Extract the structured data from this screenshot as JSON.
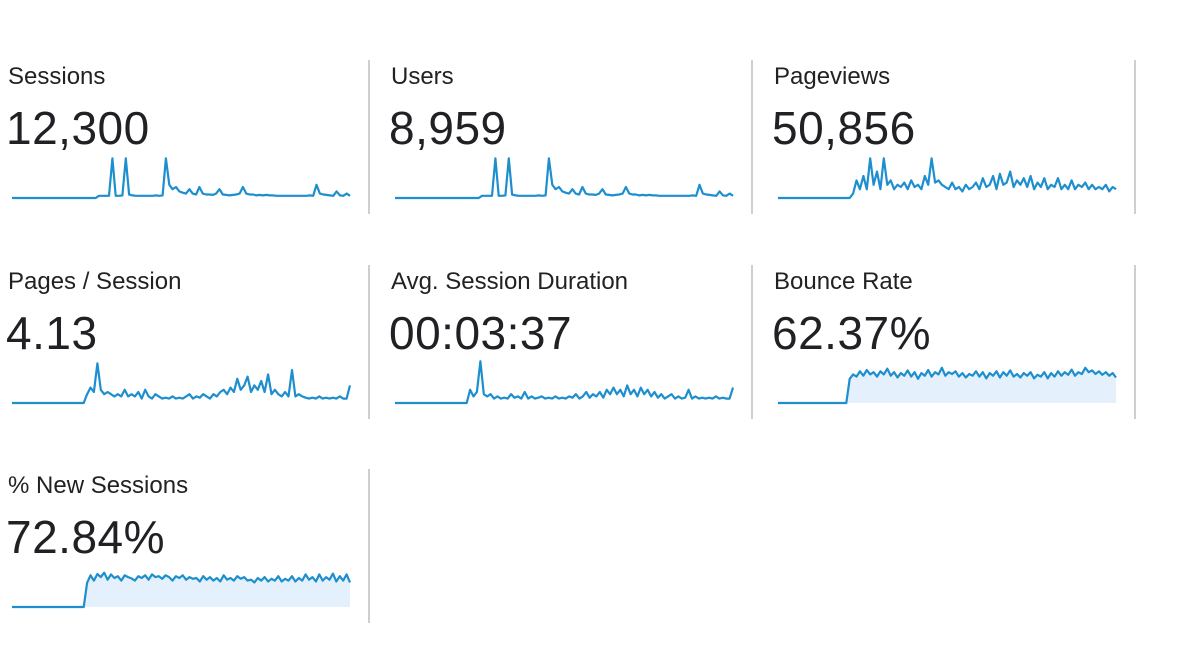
{
  "accent_color": "#1d8ece",
  "area_fill_color": "#e4f0fb",
  "metrics": [
    {
      "label": "Sessions",
      "value": "12,300",
      "chart_type": "line",
      "fill": false,
      "sparkline": [
        0,
        0,
        0,
        0,
        0,
        0,
        0,
        0,
        0,
        0,
        0,
        0,
        0,
        0,
        0,
        0,
        0,
        0,
        0,
        0,
        0,
        0,
        0,
        0,
        0,
        0,
        0.05,
        0.05,
        0.05,
        0.05,
        0.9,
        0.05,
        0.05,
        0.06,
        0.9,
        0.08,
        0.06,
        0.05,
        0.05,
        0.05,
        0.05,
        0.05,
        0.05,
        0.06,
        0.05,
        0.06,
        0.9,
        0.3,
        0.2,
        0.25,
        0.15,
        0.12,
        0.1,
        0.2,
        0.1,
        0.08,
        0.25,
        0.1,
        0.08,
        0.08,
        0.07,
        0.1,
        0.2,
        0.08,
        0.07,
        0.06,
        0.07,
        0.08,
        0.1,
        0.25,
        0.1,
        0.08,
        0.08,
        0.06,
        0.07,
        0.06,
        0.07,
        0.06,
        0.06,
        0.05,
        0.05,
        0.05,
        0.05,
        0.05,
        0.05,
        0.05,
        0.05,
        0.05,
        0.05,
        0.06,
        0.05,
        0.3,
        0.1,
        0.08,
        0.07,
        0.06,
        0.05,
        0.15,
        0.06,
        0.05,
        0.1,
        0.05
      ]
    },
    {
      "label": "Users",
      "value": "8,959",
      "chart_type": "line",
      "fill": false,
      "sparkline": [
        0,
        0,
        0,
        0,
        0,
        0,
        0,
        0,
        0,
        0,
        0,
        0,
        0,
        0,
        0,
        0,
        0,
        0,
        0,
        0,
        0,
        0,
        0,
        0,
        0,
        0,
        0.05,
        0.05,
        0.05,
        0.05,
        0.9,
        0.05,
        0.05,
        0.06,
        0.9,
        0.08,
        0.06,
        0.05,
        0.05,
        0.05,
        0.05,
        0.05,
        0.05,
        0.06,
        0.05,
        0.06,
        0.9,
        0.3,
        0.2,
        0.25,
        0.15,
        0.12,
        0.1,
        0.2,
        0.1,
        0.08,
        0.25,
        0.1,
        0.08,
        0.08,
        0.07,
        0.1,
        0.2,
        0.08,
        0.07,
        0.06,
        0.07,
        0.08,
        0.1,
        0.25,
        0.1,
        0.08,
        0.08,
        0.06,
        0.07,
        0.06,
        0.07,
        0.06,
        0.06,
        0.05,
        0.05,
        0.05,
        0.05,
        0.05,
        0.05,
        0.05,
        0.05,
        0.05,
        0.05,
        0.06,
        0.05,
        0.3,
        0.1,
        0.08,
        0.07,
        0.06,
        0.05,
        0.15,
        0.06,
        0.05,
        0.1,
        0.05
      ]
    },
    {
      "label": "Pageviews",
      "value": "50,856",
      "chart_type": "line",
      "fill": false,
      "sparkline": [
        0,
        0,
        0,
        0,
        0,
        0,
        0,
        0,
        0,
        0,
        0,
        0,
        0,
        0,
        0,
        0,
        0,
        0,
        0,
        0,
        0,
        0,
        0.1,
        0.4,
        0.2,
        0.5,
        0.2,
        0.9,
        0.3,
        0.6,
        0.2,
        0.9,
        0.3,
        0.4,
        0.2,
        0.3,
        0.25,
        0.35,
        0.2,
        0.4,
        0.25,
        0.3,
        0.2,
        0.5,
        0.3,
        0.9,
        0.35,
        0.4,
        0.3,
        0.25,
        0.2,
        0.35,
        0.2,
        0.25,
        0.15,
        0.3,
        0.2,
        0.25,
        0.35,
        0.2,
        0.45,
        0.25,
        0.3,
        0.5,
        0.2,
        0.55,
        0.3,
        0.35,
        0.6,
        0.25,
        0.4,
        0.3,
        0.45,
        0.25,
        0.5,
        0.2,
        0.35,
        0.25,
        0.45,
        0.2,
        0.3,
        0.25,
        0.45,
        0.2,
        0.3,
        0.2,
        0.4,
        0.2,
        0.3,
        0.25,
        0.35,
        0.2,
        0.3,
        0.2,
        0.25,
        0.2,
        0.3,
        0.15,
        0.25,
        0.2
      ]
    },
    {
      "label": "Pages / Session",
      "value": "4.13",
      "chart_type": "line",
      "fill": false,
      "sparkline": [
        0,
        0,
        0,
        0,
        0,
        0,
        0,
        0,
        0,
        0,
        0,
        0,
        0,
        0,
        0,
        0,
        0,
        0,
        0,
        0,
        0,
        0,
        0.2,
        0.35,
        0.25,
        0.9,
        0.3,
        0.2,
        0.25,
        0.2,
        0.15,
        0.2,
        0.15,
        0.3,
        0.15,
        0.2,
        0.15,
        0.25,
        0.1,
        0.3,
        0.15,
        0.1,
        0.2,
        0.15,
        0.1,
        0.12,
        0.1,
        0.15,
        0.1,
        0.12,
        0.1,
        0.15,
        0.2,
        0.1,
        0.15,
        0.12,
        0.2,
        0.15,
        0.1,
        0.2,
        0.15,
        0.25,
        0.3,
        0.2,
        0.35,
        0.25,
        0.55,
        0.3,
        0.4,
        0.6,
        0.25,
        0.4,
        0.3,
        0.5,
        0.25,
        0.65,
        0.2,
        0.3,
        0.2,
        0.15,
        0.25,
        0.15,
        0.75,
        0.15,
        0.2,
        0.15,
        0.12,
        0.1,
        0.12,
        0.1,
        0.15,
        0.1,
        0.12,
        0.1,
        0.12,
        0.1,
        0.15,
        0.1,
        0.1,
        0.4
      ]
    },
    {
      "label": "Avg. Session Duration",
      "value": "00:03:37",
      "chart_type": "line",
      "fill": false,
      "sparkline": [
        0,
        0,
        0,
        0,
        0,
        0,
        0,
        0,
        0,
        0,
        0,
        0,
        0,
        0,
        0,
        0,
        0,
        0,
        0,
        0,
        0,
        0,
        0.3,
        0.15,
        0.25,
        0.95,
        0.2,
        0.15,
        0.2,
        0.1,
        0.15,
        0.1,
        0.12,
        0.1,
        0.2,
        0.12,
        0.15,
        0.1,
        0.25,
        0.1,
        0.15,
        0.1,
        0.12,
        0.15,
        0.1,
        0.12,
        0.1,
        0.15,
        0.1,
        0.12,
        0.1,
        0.15,
        0.12,
        0.2,
        0.1,
        0.15,
        0.25,
        0.12,
        0.2,
        0.15,
        0.25,
        0.12,
        0.3,
        0.2,
        0.35,
        0.2,
        0.3,
        0.15,
        0.4,
        0.2,
        0.3,
        0.15,
        0.35,
        0.2,
        0.3,
        0.15,
        0.25,
        0.12,
        0.2,
        0.1,
        0.15,
        0.2,
        0.1,
        0.15,
        0.1,
        0.12,
        0.3,
        0.1,
        0.15,
        0.1,
        0.12,
        0.1,
        0.12,
        0.1,
        0.15,
        0.1,
        0.12,
        0.1,
        0.1,
        0.35
      ]
    },
    {
      "label": "Bounce Rate",
      "value": "62.37%",
      "chart_type": "area",
      "fill": true,
      "sparkline": [
        0,
        0,
        0,
        0,
        0,
        0,
        0,
        0,
        0,
        0,
        0,
        0,
        0,
        0,
        0,
        0,
        0,
        0,
        0,
        0,
        0,
        0.55,
        0.65,
        0.6,
        0.72,
        0.62,
        0.75,
        0.65,
        0.7,
        0.6,
        0.72,
        0.65,
        0.78,
        0.62,
        0.7,
        0.58,
        0.68,
        0.62,
        0.74,
        0.6,
        0.7,
        0.55,
        0.68,
        0.62,
        0.75,
        0.6,
        0.7,
        0.65,
        0.8,
        0.62,
        0.7,
        0.66,
        0.72,
        0.6,
        0.68,
        0.58,
        0.66,
        0.62,
        0.72,
        0.6,
        0.7,
        0.56,
        0.68,
        0.62,
        0.72,
        0.58,
        0.7,
        0.62,
        0.74,
        0.6,
        0.66,
        0.58,
        0.68,
        0.62,
        0.7,
        0.56,
        0.64,
        0.6,
        0.7,
        0.56,
        0.68,
        0.6,
        0.72,
        0.62,
        0.7,
        0.64,
        0.76,
        0.62,
        0.7,
        0.66,
        0.8,
        0.7,
        0.74,
        0.66,
        0.72,
        0.64,
        0.7,
        0.62,
        0.68,
        0.58
      ]
    },
    {
      "label": "% New Sessions",
      "value": "72.84%",
      "chart_type": "area",
      "fill": true,
      "sparkline": [
        0,
        0,
        0,
        0,
        0,
        0,
        0,
        0,
        0,
        0,
        0,
        0,
        0,
        0,
        0,
        0,
        0,
        0,
        0,
        0,
        0,
        0,
        0.55,
        0.72,
        0.6,
        0.75,
        0.68,
        0.78,
        0.62,
        0.74,
        0.66,
        0.7,
        0.6,
        0.72,
        0.68,
        0.65,
        0.6,
        0.7,
        0.66,
        0.72,
        0.62,
        0.74,
        0.68,
        0.7,
        0.64,
        0.72,
        0.68,
        0.6,
        0.7,
        0.66,
        0.72,
        0.62,
        0.68,
        0.64,
        0.66,
        0.58,
        0.7,
        0.62,
        0.68,
        0.6,
        0.66,
        0.58,
        0.72,
        0.62,
        0.66,
        0.6,
        0.7,
        0.64,
        0.68,
        0.6,
        0.62,
        0.56,
        0.66,
        0.6,
        0.68,
        0.58,
        0.64,
        0.6,
        0.7,
        0.58,
        0.64,
        0.6,
        0.7,
        0.58,
        0.66,
        0.6,
        0.74,
        0.62,
        0.68,
        0.58,
        0.74,
        0.6,
        0.68,
        0.62,
        0.76,
        0.58,
        0.7,
        0.6,
        0.74,
        0.56
      ]
    }
  ]
}
